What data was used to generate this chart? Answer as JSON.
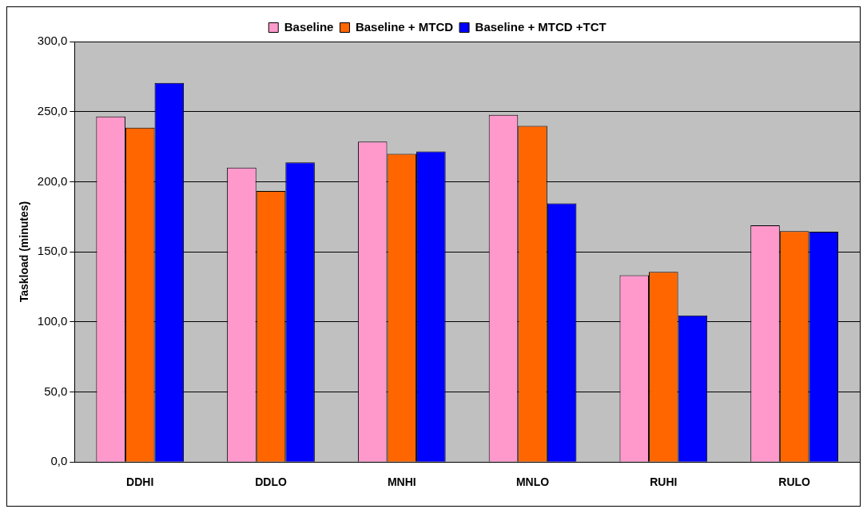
{
  "chart_data": {
    "type": "bar",
    "ylabel": "Taskload (minutes)",
    "categories": [
      "DDHI",
      "DDLO",
      "MNHI",
      "MNLO",
      "RUHI",
      "RULO"
    ],
    "series": [
      {
        "name": "Baseline",
        "color": "#ff99cc",
        "values": [
          246.5,
          210,
          228.6,
          247.7,
          133.2,
          168.9
        ]
      },
      {
        "name": "Baseline + MTCD",
        "color": "#ff6600",
        "values": [
          238.6,
          193.4,
          219.9,
          239.8,
          135.7,
          164.7
        ]
      },
      {
        "name": "Baseline + MTCD +TCT",
        "color": "#0000ff",
        "values": [
          270.5,
          213.7,
          221.6,
          184.6,
          104.6,
          164.3
        ]
      }
    ],
    "ylim": [
      0,
      300
    ],
    "yticks": [
      {
        "value": 0,
        "label": "0,0"
      },
      {
        "value": 50,
        "label": "50,0"
      },
      {
        "value": 100,
        "label": "100,0"
      },
      {
        "value": 150,
        "label": "150,0"
      },
      {
        "value": 200,
        "label": "200,0"
      },
      {
        "value": 250,
        "label": "250,0"
      },
      {
        "value": 300,
        "label": "300,0"
      }
    ],
    "grid": "y",
    "legend": "top"
  }
}
